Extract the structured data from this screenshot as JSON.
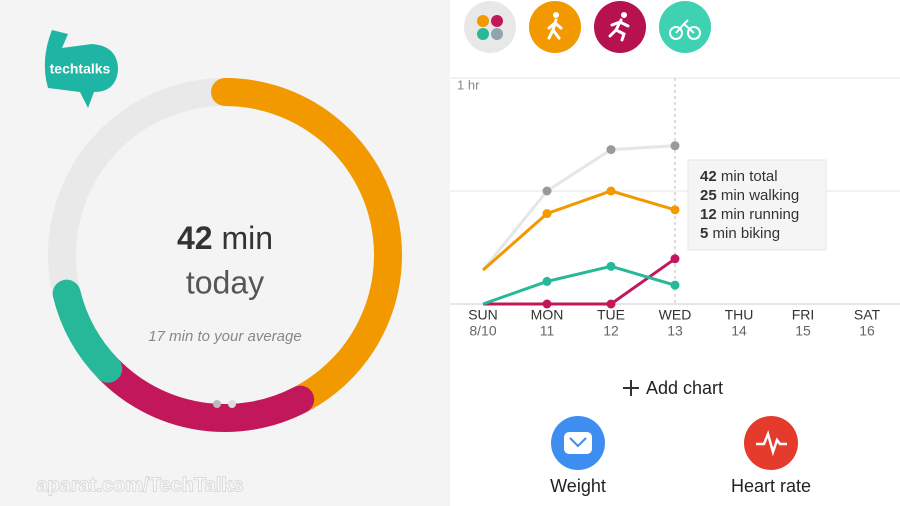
{
  "logo": "techtalks",
  "watermark": "aparat.com/TechTalks",
  "summary": {
    "value": 42,
    "unit": "min",
    "period": "today",
    "to_average": 17,
    "note_text": "min to your average"
  },
  "chart_data": {
    "type": "line",
    "categories": [
      "SUN",
      "MON",
      "TUE",
      "WED",
      "THU",
      "FRI",
      "SAT"
    ],
    "dates": [
      "8/10",
      "11",
      "12",
      "13",
      "14",
      "15",
      "16"
    ],
    "series": [
      {
        "color": "#e6e6e6",
        "values": [
          9,
          30,
          41,
          42,
          null,
          null,
          null
        ]
      },
      {
        "color": "#f29900",
        "values": [
          9,
          24,
          30,
          25,
          null,
          null,
          null
        ]
      },
      {
        "color": "#c2185b",
        "values": [
          0,
          0,
          0,
          12,
          null,
          null,
          null
        ]
      },
      {
        "color": "#26b898",
        "values": [
          0,
          6,
          10,
          5,
          null,
          null,
          null
        ]
      }
    ],
    "ylim": [
      0,
      60
    ],
    "yticks": [
      {
        "value": 60,
        "label": "1 hr"
      },
      {
        "value": 30,
        "label": null
      }
    ],
    "grid": true,
    "tooltip": {
      "rows": [
        {
          "value": 42,
          "text": "min total"
        },
        {
          "value": 25,
          "text": "min walking"
        },
        {
          "value": 12,
          "text": "min running"
        },
        {
          "value": 5,
          "text": "min biking"
        }
      ]
    }
  },
  "add_chart": "Add chart",
  "shortcuts": [
    "Weight",
    "Heart rate"
  ]
}
